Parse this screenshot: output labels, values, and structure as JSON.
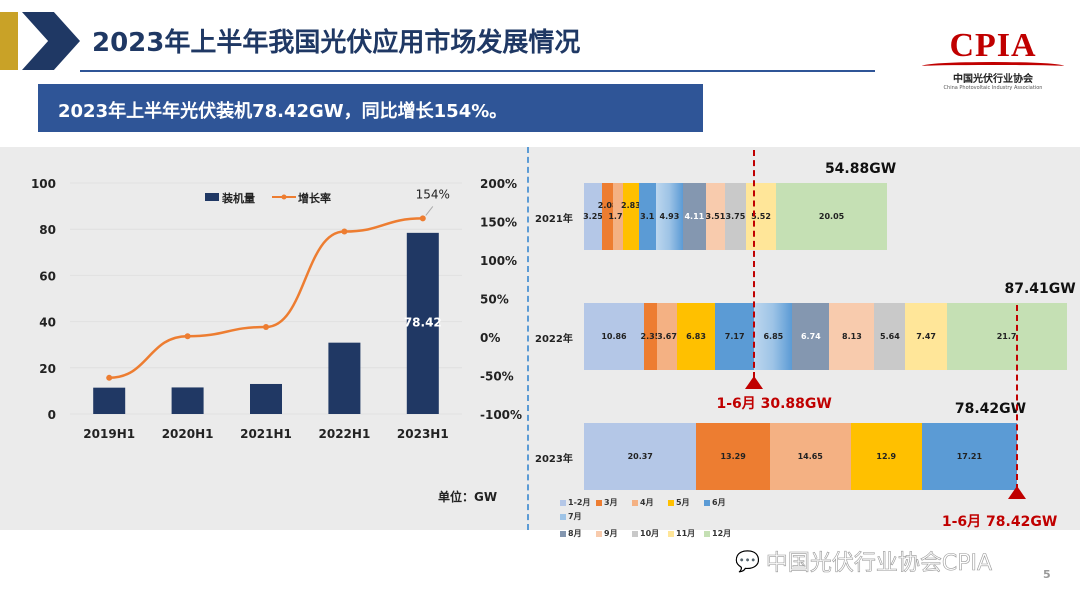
{
  "header": {
    "title": "2023年上半年我国光伏应用市场发展情况",
    "subtitle": "2023年上半年光伏装机78.42GW，同比增长154%。"
  },
  "logo": {
    "text": "CPIA",
    "cn": "中国光伏行业协会",
    "en": "China Photovoltaic Industry Association"
  },
  "watermark": {
    "text": "中国光伏行业协会CPIA",
    "icon": "wechat-icon"
  },
  "page_number": "5",
  "chart_data": [
    {
      "type": "bar+line",
      "categories": [
        "2019H1",
        "2020H1",
        "2021H1",
        "2022H1",
        "2023H1"
      ],
      "series": [
        {
          "name": "装机量",
          "type": "bar",
          "axis": "left",
          "values": [
            11.4,
            11.5,
            13.0,
            30.88,
            78.42
          ],
          "color": "#203864"
        },
        {
          "name": "增长率",
          "type": "line",
          "axis": "right",
          "values": [
            -53,
            1,
            13,
            137,
            154
          ],
          "color": "#ed7d31"
        }
      ],
      "data_labels": {
        "bar_2023H1": "78.42",
        "line_2023H1": "154%"
      },
      "left_ticks": [
        "100",
        "80",
        "60",
        "40",
        "20",
        "0"
      ],
      "right_ticks": [
        "200%",
        "150%",
        "100%",
        "50%",
        "0%",
        "-50%",
        "-100%"
      ],
      "ylim": [
        0,
        100
      ],
      "y2lim": [
        -100,
        200
      ],
      "unit_label": "单位：GW",
      "legend": "top-center",
      "grid": true
    },
    {
      "type": "stacked-bar-horizontal",
      "months": [
        "1-2月",
        "3月",
        "4月",
        "5月",
        "6月",
        "7月",
        "8月",
        "9月",
        "10月",
        "11月",
        "12月"
      ],
      "colors": [
        "#b4c7e7",
        "#ed7d31",
        "#f4b183",
        "#ffc000",
        "#5b9bd5",
        "#9dc3e6",
        "#8497b0",
        "#f8cbad",
        "#c9c9c9",
        "#ffe699",
        "#c5e0b4"
      ],
      "rows": [
        {
          "label": "2021年",
          "values": [
            3.25,
            2.08,
            1.75,
            2.83,
            3.1,
            4.93,
            4.11,
            3.51,
            3.75,
            5.52,
            20.05
          ],
          "labels": [
            "3.25",
            "2.08",
            "1.75",
            "2.83",
            "3.1",
            "4.93",
            "4.11",
            "3.51",
            "3.75",
            "5.52",
            "20.05"
          ],
          "total": "54.88GW"
        },
        {
          "label": "2022年",
          "values": [
            10.86,
            2.35,
            3.67,
            6.83,
            7.17,
            6.85,
            6.74,
            8.13,
            5.64,
            7.47,
            21.7
          ],
          "labels": [
            "10.86",
            "2.35",
            "3.67",
            "6.83",
            "7.17",
            "6.85",
            "6.74",
            "8.13",
            "5.64",
            "7.47",
            "21.7"
          ],
          "total": "87.41GW"
        },
        {
          "label": "2023年",
          "values": [
            20.37,
            13.29,
            14.65,
            12.9,
            17.21
          ],
          "labels": [
            "20.37",
            "13.29",
            "14.65",
            "12.9",
            "17.21"
          ],
          "total": "78.42GW"
        }
      ],
      "markers": [
        {
          "label": "1-6月",
          "value_text": "30.88GW",
          "value": 30.88
        },
        {
          "label": "1-6月",
          "value_text": "78.42GW",
          "value": 78.42
        }
      ],
      "legend": "bottom-left"
    }
  ]
}
